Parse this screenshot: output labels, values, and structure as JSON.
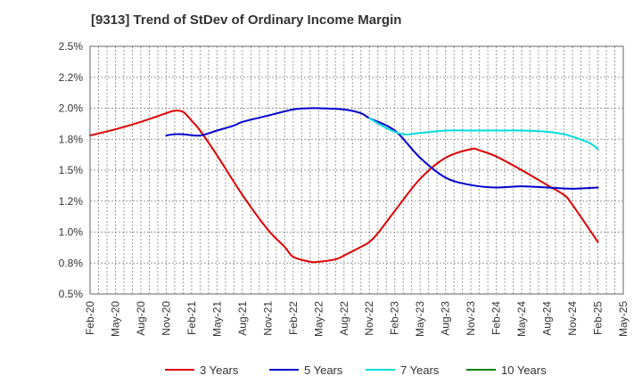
{
  "chart_data": {
    "type": "line",
    "title": "[9313]  Trend of StDev of Ordinary Income Margin",
    "xlabel": "",
    "ylabel": "",
    "x_ticks": [
      "Feb-20",
      "May-20",
      "Aug-20",
      "Nov-20",
      "Feb-21",
      "May-21",
      "Aug-21",
      "Nov-21",
      "Feb-22",
      "May-22",
      "Aug-22",
      "Nov-22",
      "Feb-23",
      "May-23",
      "Aug-23",
      "Nov-23",
      "Feb-24",
      "May-24",
      "Aug-24",
      "Nov-24",
      "Feb-25",
      "May-25"
    ],
    "y_ticks": [
      "0.5%",
      "0.8%",
      "1.0%",
      "1.2%",
      "1.5%",
      "1.8%",
      "2.0%",
      "2.2%",
      "2.5%"
    ],
    "ylim": [
      0.5,
      2.5
    ],
    "grid": true,
    "legend_position": "bottom",
    "series": [
      {
        "name": "3 Years",
        "color": "#dd0000",
        "points": [
          [
            "Feb-20",
            1.78
          ],
          [
            "May-20",
            1.83
          ],
          [
            "Aug-20",
            1.89
          ],
          [
            "Nov-20",
            1.96
          ],
          [
            "Dec-20",
            1.98
          ],
          [
            "Jan-21",
            1.97
          ],
          [
            "Feb-21",
            1.9
          ],
          [
            "Mar-21",
            1.82
          ],
          [
            "May-21",
            1.62
          ],
          [
            "Aug-21",
            1.3
          ],
          [
            "Nov-21",
            1.02
          ],
          [
            "Jan-22",
            0.88
          ],
          [
            "Feb-22",
            0.8
          ],
          [
            "Apr-22",
            0.76
          ],
          [
            "May-22",
            0.76
          ],
          [
            "Jul-22",
            0.78
          ],
          [
            "Aug-22",
            0.81
          ],
          [
            "Oct-22",
            0.88
          ],
          [
            "Nov-22",
            0.92
          ],
          [
            "Dec-22",
            0.99
          ],
          [
            "Feb-23",
            1.17
          ],
          [
            "May-23",
            1.43
          ],
          [
            "Aug-23",
            1.6
          ],
          [
            "Nov-23",
            1.67
          ],
          [
            "Dec-23",
            1.66
          ],
          [
            "Feb-24",
            1.61
          ],
          [
            "May-24",
            1.5
          ],
          [
            "Aug-24",
            1.38
          ],
          [
            "Oct-24",
            1.3
          ],
          [
            "Nov-24",
            1.22
          ],
          [
            "Feb-25",
            0.92
          ]
        ]
      },
      {
        "name": "5 Years",
        "color": "#0000cc",
        "points": [
          [
            "Nov-20",
            1.78
          ],
          [
            "Dec-20",
            1.79
          ],
          [
            "Jan-21",
            1.79
          ],
          [
            "Mar-21",
            1.78
          ],
          [
            "May-21",
            1.82
          ],
          [
            "Jul-21",
            1.86
          ],
          [
            "Aug-21",
            1.89
          ],
          [
            "Nov-21",
            1.94
          ],
          [
            "Feb-22",
            1.99
          ],
          [
            "Apr-22",
            2.0
          ],
          [
            "May-22",
            2.0
          ],
          [
            "Aug-22",
            1.99
          ],
          [
            "Oct-22",
            1.96
          ],
          [
            "Nov-22",
            1.92
          ],
          [
            "Feb-23",
            1.82
          ],
          [
            "May-23",
            1.6
          ],
          [
            "Aug-23",
            1.44
          ],
          [
            "Nov-23",
            1.38
          ],
          [
            "Feb-24",
            1.36
          ],
          [
            "May-24",
            1.37
          ],
          [
            "Aug-24",
            1.36
          ],
          [
            "Nov-24",
            1.35
          ],
          [
            "Feb-25",
            1.36
          ]
        ]
      },
      {
        "name": "7 Years",
        "color": "#00dddd",
        "points": [
          [
            "Nov-22",
            1.92
          ],
          [
            "Jan-23",
            1.84
          ],
          [
            "Mar-23",
            1.79
          ],
          [
            "May-23",
            1.8
          ],
          [
            "Aug-23",
            1.82
          ],
          [
            "Nov-23",
            1.82
          ],
          [
            "Feb-24",
            1.82
          ],
          [
            "May-24",
            1.82
          ],
          [
            "Aug-24",
            1.81
          ],
          [
            "Oct-24",
            1.79
          ],
          [
            "Nov-24",
            1.77
          ],
          [
            "Jan-25",
            1.72
          ],
          [
            "Feb-25",
            1.67
          ]
        ]
      },
      {
        "name": "10 Years",
        "color": "#008000",
        "points": []
      }
    ]
  }
}
